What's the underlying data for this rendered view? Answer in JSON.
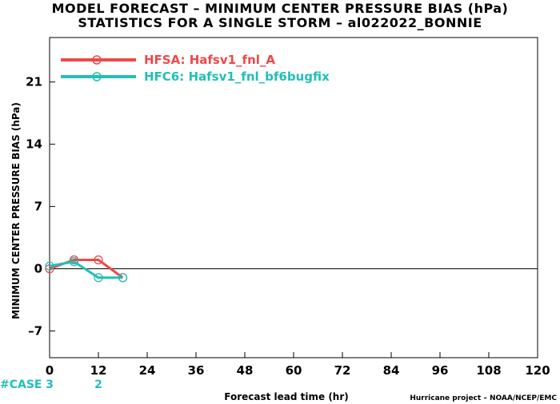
{
  "title": {
    "line1": "MODEL FORECAST – MINIMUM CENTER PRESSURE BIAS (hPa)",
    "line2": "STATISTICS FOR A SINGLE STORM – al022022_BONNIE"
  },
  "chart_data": {
    "type": "line",
    "xlabel": "Forecast lead time (hr)",
    "ylabel": "MINIMUM CENTER PRESSURE BIAS (hPa)",
    "xlim": [
      0,
      120
    ],
    "ylim": [
      -10,
      26
    ],
    "xticks": [
      0,
      12,
      24,
      36,
      48,
      60,
      72,
      84,
      96,
      108,
      120
    ],
    "yticks": [
      -7,
      0,
      7,
      14,
      21
    ],
    "legend_position": "top-left",
    "zero_line": true,
    "series": [
      {
        "name": "HFSA: Hafsv1_fnl_A",
        "color": "#f04848",
        "points": [
          [
            0,
            0
          ],
          [
            6,
            1.0
          ],
          [
            12,
            1.0
          ],
          [
            18,
            -1.0
          ]
        ]
      },
      {
        "name": "HFC6: Hafsv1_fnl_bf6bugfix",
        "color": "#20c0b8",
        "points": [
          [
            0,
            0.3
          ],
          [
            6,
            0.8
          ],
          [
            12,
            -1.0
          ],
          [
            18,
            -1.0
          ]
        ]
      }
    ],
    "cases": {
      "label": "#CASE",
      "label_color": "#20c0b8",
      "values": [
        {
          "x": 0,
          "text": "3"
        },
        {
          "x": 12,
          "text": "2"
        }
      ]
    }
  },
  "credit": "Hurricane project – NOAA/NCEP/EMC"
}
